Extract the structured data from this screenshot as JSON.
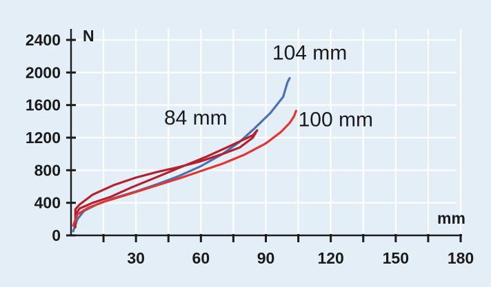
{
  "chart_data": {
    "type": "line",
    "title": "",
    "xlabel": "mm",
    "ylabel": "N",
    "xlim": [
      0,
      180
    ],
    "ylim": [
      0,
      2400
    ],
    "x_ticks": [
      30,
      60,
      90,
      120,
      150,
      180
    ],
    "x_minor_ticks": [
      15,
      45,
      75,
      105,
      135,
      165
    ],
    "x_tick_labels": [
      "30",
      "60",
      "90",
      "120",
      "150",
      "180"
    ],
    "y_ticks": [
      0,
      400,
      800,
      1200,
      1600,
      2000,
      2400
    ],
    "y_tick_labels": [
      "0",
      "400",
      "800",
      "1200",
      "1600",
      "2000",
      "2400"
    ],
    "grid": true,
    "legend": "none",
    "annotations": [
      {
        "text": "104 mm",
        "x": 93,
        "y": 2160
      },
      {
        "text": "84 mm",
        "x": 43,
        "y": 1360
      },
      {
        "text": "100 mm",
        "x": 105,
        "y": 1340
      }
    ],
    "series": [
      {
        "color": "#4a72b2",
        "points": [
          [
            1,
            50
          ],
          [
            3,
            200
          ],
          [
            6,
            300
          ],
          [
            12,
            380
          ],
          [
            20,
            460
          ],
          [
            30,
            540
          ],
          [
            40,
            630
          ],
          [
            50,
            730
          ],
          [
            60,
            850
          ],
          [
            70,
            1000
          ],
          [
            78,
            1150
          ],
          [
            85,
            1320
          ],
          [
            92,
            1500
          ],
          [
            98,
            1700
          ],
          [
            100,
            1880
          ],
          [
            101,
            1930
          ]
        ]
      },
      {
        "color": "#b3202e",
        "points": [
          [
            2,
            100
          ],
          [
            2,
            320
          ],
          [
            4,
            380
          ],
          [
            10,
            500
          ],
          [
            20,
            620
          ],
          [
            30,
            710
          ],
          [
            40,
            780
          ],
          [
            50,
            840
          ],
          [
            60,
            910
          ],
          [
            70,
            1000
          ],
          [
            78,
            1080
          ],
          [
            84,
            1200
          ],
          [
            86,
            1290
          ],
          [
            84,
            1230
          ],
          [
            80,
            1180
          ],
          [
            72,
            1080
          ],
          [
            62,
            960
          ],
          [
            50,
            830
          ],
          [
            40,
            720
          ],
          [
            28,
            590
          ],
          [
            18,
            470
          ],
          [
            10,
            400
          ],
          [
            4,
            330
          ],
          [
            2,
            260
          ]
        ]
      },
      {
        "color": "#e33530",
        "points": [
          [
            1,
            120
          ],
          [
            3,
            260
          ],
          [
            8,
            340
          ],
          [
            16,
            420
          ],
          [
            26,
            500
          ],
          [
            38,
            600
          ],
          [
            50,
            700
          ],
          [
            60,
            790
          ],
          [
            70,
            880
          ],
          [
            80,
            990
          ],
          [
            90,
            1130
          ],
          [
            97,
            1270
          ],
          [
            101,
            1380
          ],
          [
            103,
            1460
          ],
          [
            104,
            1530
          ]
        ]
      }
    ]
  }
}
